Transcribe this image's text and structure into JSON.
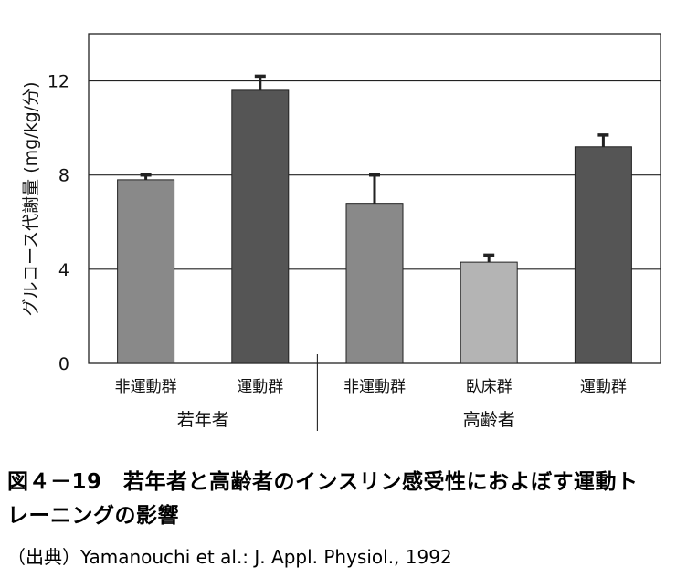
{
  "chart_data": {
    "type": "bar",
    "ylabel": "グルコース代謝量 (mg/kg/分)",
    "ylim": [
      0,
      14
    ],
    "yticks": [
      0,
      4,
      8,
      12
    ],
    "gridlines": [
      4,
      8,
      12
    ],
    "categories": [
      "非運動群",
      "運動群",
      "非運動群",
      "臥床群",
      "運動群"
    ],
    "groups": [
      {
        "label": "若年者",
        "categories": [
          "非運動群",
          "運動群"
        ]
      },
      {
        "label": "高齢者",
        "categories": [
          "非運動群",
          "臥床群",
          "運動群"
        ]
      }
    ],
    "values": [
      7.8,
      11.6,
      6.8,
      4.3,
      9.2
    ],
    "errors": [
      0.2,
      0.6,
      1.2,
      0.3,
      0.5
    ],
    "bar_colors": [
      "#898989",
      "#555555",
      "#898989",
      "#b4b4b4",
      "#555555"
    ]
  },
  "caption": {
    "title_line1": "図４－19　若年者と高齢者のインスリン感受性におよぼす運動ト",
    "title_line2": "レーニングの影響",
    "source": "（出典）Yamanouchi et al.: J. Appl. Physiol., 1992"
  }
}
